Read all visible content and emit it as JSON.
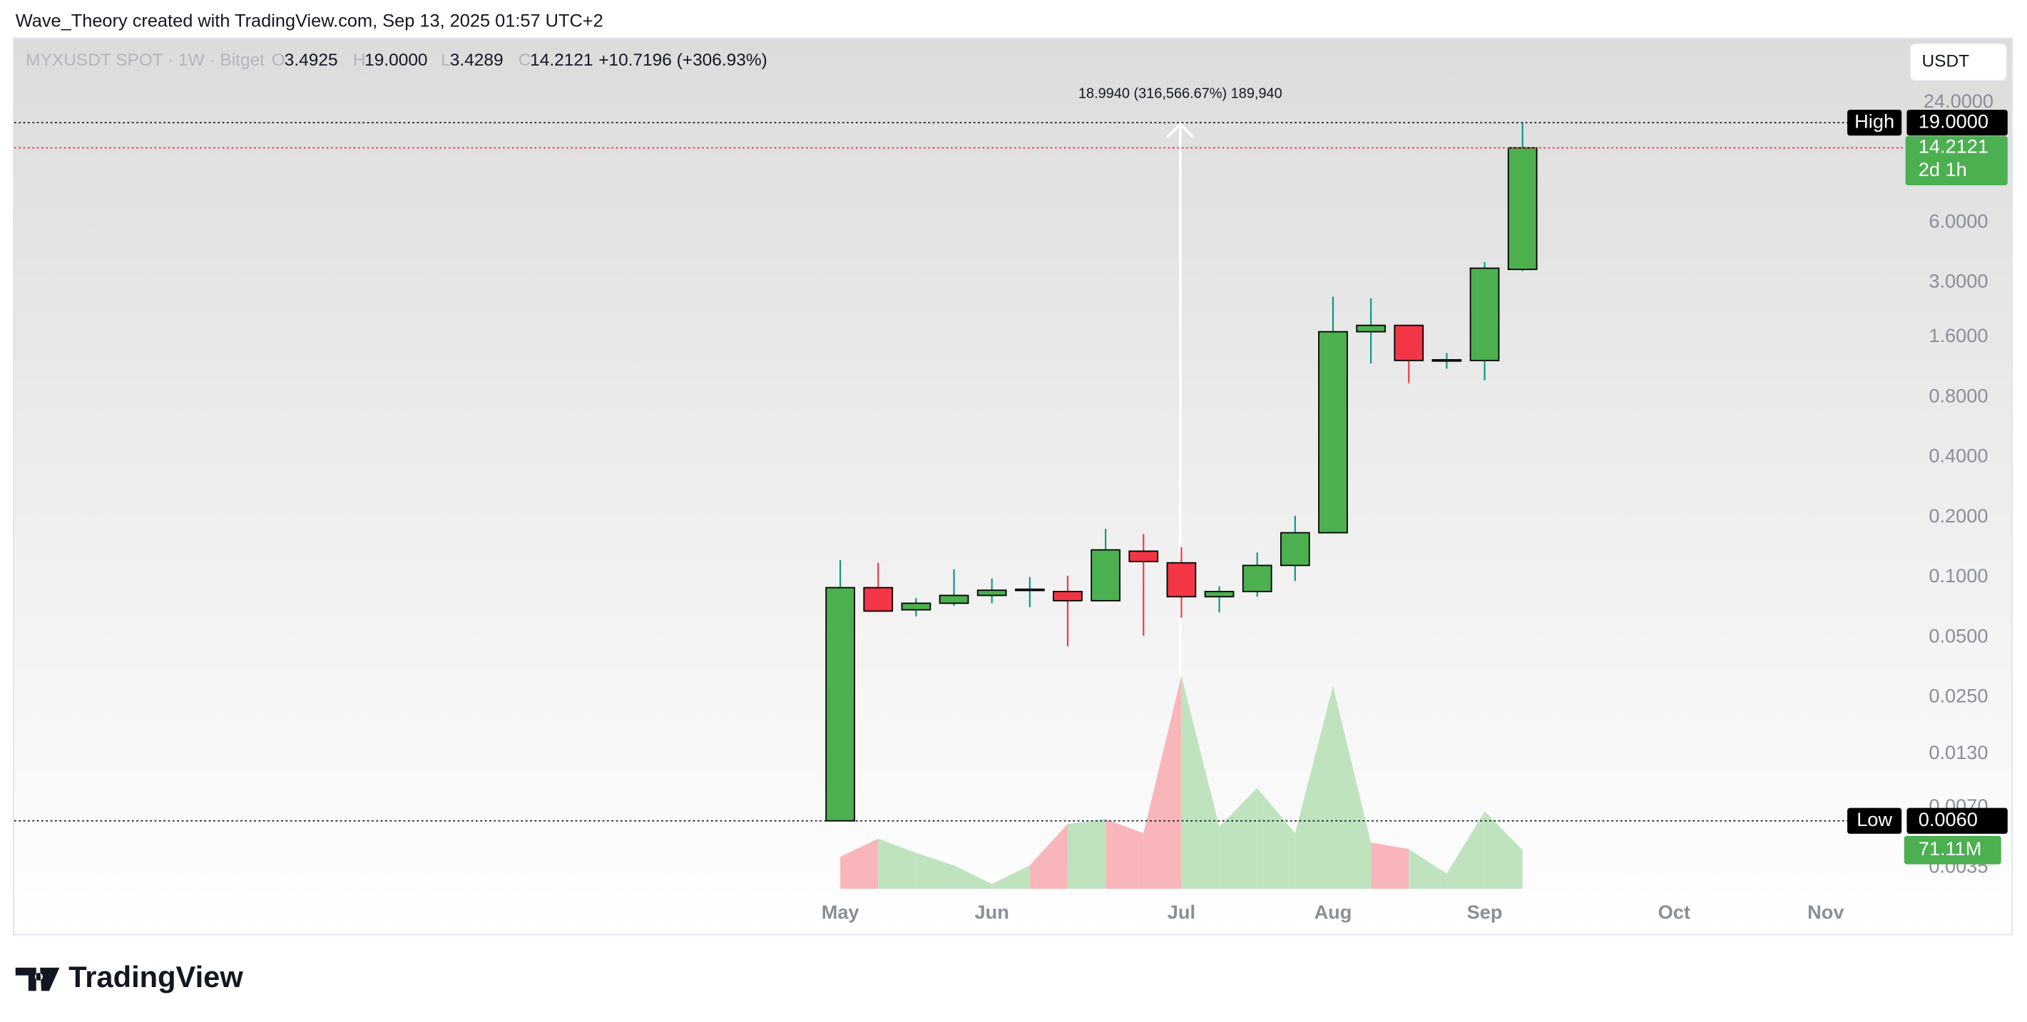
{
  "header": {
    "attribution": "Wave_Theory created with TradingView.com, Sep 13, 2025 01:57 UTC+2"
  },
  "chart_data": {
    "type": "candlestick",
    "symbol": "MYXUSDT SPOT · 1W · Bitget",
    "legend": [
      {
        "key": "O",
        "text": "3.4925"
      },
      {
        "key": "H",
        "text": "19.0000"
      },
      {
        "key": "L",
        "text": "3.4289"
      },
      {
        "key": "C",
        "text": "14.2121"
      }
    ],
    "change": "+10.7196 (+306.93%)",
    "currency": "USDT",
    "measure": "18.9940 (316,566.67%) 189,940",
    "categories": [
      "May",
      null,
      null,
      null,
      "Jun",
      null,
      null,
      null,
      null,
      "Jul",
      null,
      null,
      null,
      "Aug",
      null,
      null,
      null,
      "Sep",
      null,
      null,
      null,
      null,
      "Oct",
      null,
      null,
      null,
      "Nov"
    ],
    "open": [
      0.006,
      0.0886,
      0.0686,
      0.074,
      0.081,
      0.086,
      0.0847,
      0.0762,
      0.135,
      0.118,
      0.0798,
      0.0847,
      0.1145,
      0.167,
      1.7,
      1.83,
      1.22,
      1.22,
      3.4925,
      null,
      null,
      null,
      null,
      null,
      null,
      null,
      null
    ],
    "high": [
      0.1217,
      0.118,
      0.0786,
      0.1095,
      0.0985,
      0.1,
      0.1015,
      0.1746,
      0.1645,
      0.1414,
      0.09,
      0.133,
      0.203,
      2.55,
      2.5,
      1.83,
      1.33,
      3.8,
      19,
      null,
      null,
      null,
      null,
      null,
      null,
      null,
      null
    ],
    "low": [
      0.006,
      0.0676,
      0.0636,
      0.0718,
      0.074,
      0.0707,
      0.045,
      0.0762,
      0.0508,
      0.0627,
      0.0666,
      0.0798,
      0.0956,
      0.167,
      1.18,
      0.94,
      1.11,
      0.97,
      3.4289,
      null,
      null,
      null,
      null,
      null,
      null,
      null,
      null
    ],
    "close": [
      0.0886,
      0.0676,
      0.074,
      0.081,
      0.086,
      0.087,
      0.0762,
      0.137,
      0.1198,
      0.0798,
      0.0847,
      0.1145,
      0.167,
      1.7,
      1.83,
      1.22,
      1.23,
      3.54,
      14.2121,
      null,
      null,
      null,
      null,
      null,
      null,
      null,
      null
    ],
    "volume": [
      59,
      92,
      66,
      43,
      9,
      43,
      119,
      128,
      102,
      391,
      114,
      185,
      102,
      372,
      85,
      73,
      28,
      142,
      71.11,
      null,
      null,
      null,
      null,
      null,
      null,
      null,
      null
    ],
    "volume_label": "71.11M",
    "log_scale": true,
    "grid": false,
    "ylim": [
      0.0016,
      50
    ],
    "yticks": [
      {
        "value": 24,
        "label": "24.0000"
      },
      {
        "value": 6,
        "label": "6.0000"
      },
      {
        "value": 3,
        "label": "3.0000"
      },
      {
        "value": 1.6,
        "label": "1.6000"
      },
      {
        "value": 0.8,
        "label": "0.8000"
      },
      {
        "value": 0.4,
        "label": "0.4000"
      },
      {
        "value": 0.2,
        "label": "0.2000"
      },
      {
        "value": 0.1,
        "label": "0.1000"
      },
      {
        "value": 0.05,
        "label": "0.0500"
      },
      {
        "value": 0.025,
        "label": "0.0250"
      },
      {
        "value": 0.013,
        "label": "0.0130"
      },
      {
        "value": 0.007,
        "label": "0.0070"
      },
      {
        "value": 0.0035,
        "label": "0.0035"
      }
    ],
    "high_marker": {
      "label": "High",
      "value": 19,
      "value_label": "19.0000"
    },
    "low_marker": {
      "label": "Low",
      "value": 0.006,
      "value_label": "0.0060"
    },
    "last_price": {
      "value": 14.2121,
      "value_label": "14.2121",
      "countdown": "2d 1h"
    },
    "up_color": "#4caf50",
    "down_color": "#f23645",
    "up_wick_color": "#089981",
    "down_wick_color": "#f23645",
    "up_volume_color": "#bfe3bf",
    "down_volume_color": "#f8b6ba"
  },
  "footer": {
    "brand": "TradingView"
  }
}
